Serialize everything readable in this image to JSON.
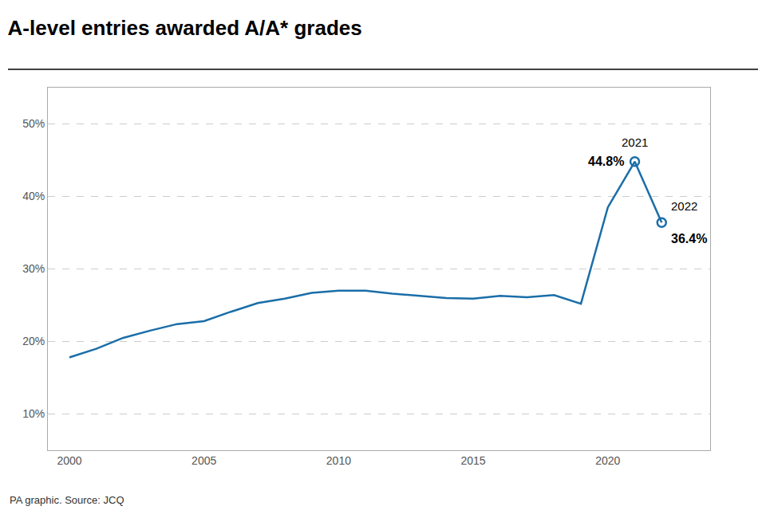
{
  "chart_data": {
    "type": "line",
    "title": "A-level entries awarded A/A* grades",
    "source": "PA graphic. Source: JCQ",
    "x": [
      2000,
      2001,
      2002,
      2003,
      2004,
      2005,
      2006,
      2007,
      2008,
      2009,
      2010,
      2011,
      2012,
      2013,
      2014,
      2015,
      2016,
      2017,
      2018,
      2019,
      2020,
      2021,
      2022
    ],
    "values": [
      17.8,
      19.0,
      20.5,
      21.5,
      22.4,
      22.8,
      24.1,
      25.3,
      25.9,
      26.7,
      27.0,
      27.0,
      26.6,
      26.3,
      26.0,
      25.9,
      26.3,
      26.1,
      26.4,
      25.2,
      38.5,
      44.8,
      36.4
    ],
    "color": "#1a6ea8",
    "highlights": [
      {
        "x": 2021,
        "y": 44.8,
        "marker": "circle-open"
      },
      {
        "x": 2022,
        "y": 36.4,
        "marker": "circle-open"
      }
    ],
    "annotations": [
      {
        "x": 2021,
        "y": 44.8,
        "text": "2021"
      },
      {
        "x": 2021,
        "y": 44.8,
        "text": "44.8%"
      },
      {
        "x": 2022,
        "y": 36.4,
        "text": "2022"
      },
      {
        "x": 2022,
        "y": 36.4,
        "text": "36.4%"
      }
    ],
    "xlim": [
      1999.2,
      2023.8
    ],
    "xticks": [
      2000,
      2005,
      2010,
      2015,
      2020
    ],
    "ylim": [
      5,
      55
    ],
    "yticks": [
      {
        "value": 10,
        "label": "10%"
      },
      {
        "value": 20,
        "label": "20%"
      },
      {
        "value": 30,
        "label": "30%"
      },
      {
        "value": 40,
        "label": "40%"
      },
      {
        "value": 50,
        "label": "50%"
      }
    ],
    "grid": true
  }
}
